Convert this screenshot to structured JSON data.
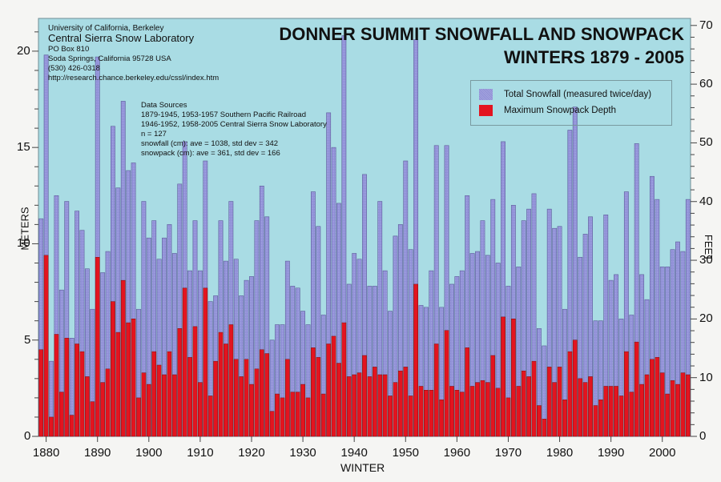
{
  "header": {
    "university": "University of California, Berkeley",
    "lab": "Central Sierra Snow Laboratory",
    "address": [
      "PO Box 810",
      "Soda Springs, California 95728 USA",
      "(530) 426-0318",
      "http://research.chance.berkeley.edu/cssl/index.htm"
    ]
  },
  "sources": {
    "heading": "Data Sources",
    "lines": [
      "1879-1945, 1953-1957 Southern Pacific Railroad",
      "1946-1952, 1958-2005 Central Sierra Snow Laboratory",
      "n = 127",
      "snowfall (cm): ave = 1038, std dev = 342",
      "snowpack (cm): ave = 361, std dev = 166"
    ]
  },
  "colors": {
    "plot_bg": "#a9dce4",
    "snowfall": "#8f8fd6",
    "snowfall_edge": "#5d5d9a",
    "snowpack": "#e3141f",
    "snowpack_edge": "#7a1010"
  },
  "chart_data": {
    "type": "bar",
    "title": "DONNER SUMMIT SNOWFALL AND SNOWPACK",
    "subtitle": "WINTERS 1879 - 2005",
    "xlabel": "WINTER",
    "ylabel": "METERS",
    "ylabel_right": "FEET",
    "ylim": [
      0,
      21.7
    ],
    "ylim_right_feet": [
      0,
      71.2
    ],
    "yticks": [
      0,
      5,
      10,
      15,
      20
    ],
    "yticks_right": [
      0,
      10,
      20,
      30,
      40,
      50,
      60,
      70
    ],
    "xticks": [
      1880,
      1890,
      1900,
      1910,
      1920,
      1930,
      1940,
      1950,
      1960,
      1970,
      1980,
      1990,
      2000
    ],
    "grid": false,
    "legend_position": "top-right",
    "legend": [
      "Total Snowfall (measured twice/day)",
      "Maximum Snowpack Depth"
    ],
    "x_start": 1879,
    "series": [
      {
        "name": "Total Snowfall (measured twice/day)",
        "units": "m",
        "values": [
          11.3,
          19.8,
          3.9,
          12.5,
          7.6,
          12.2,
          5.1,
          11.7,
          10.7,
          8.7,
          6.6,
          19.7,
          8.5,
          9.6,
          16.1,
          12.9,
          17.4,
          13.8,
          14.2,
          6.6,
          12.2,
          10.3,
          11.2,
          9.2,
          10.3,
          11.0,
          9.5,
          13.1,
          15.3,
          8.6,
          11.2,
          8.6,
          14.3,
          7.0,
          7.3,
          11.2,
          9.1,
          12.2,
          9.2,
          7.3,
          8.1,
          8.3,
          11.2,
          13.0,
          11.4,
          5.0,
          5.8,
          5.8,
          9.1,
          7.8,
          7.7,
          6.5,
          5.8,
          12.7,
          10.9,
          6.3,
          16.8,
          15.0,
          12.1,
          20.8,
          7.9,
          9.5,
          9.2,
          13.6,
          7.8,
          7.8,
          12.2,
          8.6,
          6.5,
          10.4,
          11.0,
          14.3,
          9.7,
          20.6,
          6.8,
          6.7,
          8.6,
          15.1,
          6.7,
          15.1,
          7.9,
          8.3,
          8.6,
          12.5,
          9.5,
          9.6,
          11.2,
          9.4,
          12.3,
          9.0,
          15.3,
          7.8,
          12.0,
          8.8,
          11.2,
          11.8,
          12.6,
          5.6,
          4.7,
          11.8,
          10.8,
          10.9,
          6.6,
          15.9,
          17.1,
          9.3,
          10.5,
          11.4,
          6.0,
          6.0,
          11.5,
          8.1,
          8.4,
          6.1,
          12.7,
          6.3,
          15.2,
          8.4,
          7.1,
          13.5,
          12.3,
          8.8,
          8.8,
          9.7,
          10.1,
          9.6,
          12.3
        ]
      },
      {
        "name": "Maximum Snowpack Depth",
        "units": "m",
        "values": [
          4.5,
          9.4,
          1.0,
          5.3,
          2.3,
          5.1,
          1.1,
          4.8,
          4.4,
          3.1,
          1.8,
          9.3,
          2.8,
          3.5,
          7.0,
          5.4,
          8.1,
          5.9,
          6.1,
          2.0,
          3.3,
          2.7,
          4.4,
          3.7,
          3.2,
          4.4,
          3.2,
          5.6,
          7.7,
          4.1,
          5.7,
          2.8,
          7.7,
          2.1,
          3.9,
          5.4,
          4.8,
          5.8,
          4.0,
          3.1,
          4.0,
          2.7,
          3.5,
          4.5,
          4.3,
          1.3,
          2.2,
          2.0,
          4.0,
          2.3,
          2.3,
          2.7,
          2.0,
          4.6,
          4.1,
          2.2,
          4.8,
          5.2,
          3.8,
          5.9,
          3.1,
          3.2,
          3.3,
          4.2,
          3.1,
          3.6,
          3.2,
          3.2,
          2.1,
          2.8,
          3.4,
          3.6,
          2.1,
          7.9,
          2.6,
          2.4,
          2.4,
          4.8,
          1.9,
          5.5,
          2.6,
          2.4,
          2.3,
          4.6,
          2.6,
          2.8,
          2.9,
          2.8,
          4.2,
          2.5,
          6.2,
          2.0,
          6.1,
          2.6,
          3.4,
          3.1,
          3.9,
          1.6,
          0.9,
          3.6,
          2.8,
          3.6,
          1.9,
          4.4,
          5.0,
          3.0,
          2.8,
          3.1,
          1.6,
          1.9,
          2.6,
          2.6,
          2.6,
          2.1,
          4.4,
          2.3,
          4.9,
          2.7,
          3.2,
          4.0,
          4.1,
          3.3,
          2.2,
          2.9,
          2.7,
          3.3,
          3.2
        ]
      }
    ]
  }
}
